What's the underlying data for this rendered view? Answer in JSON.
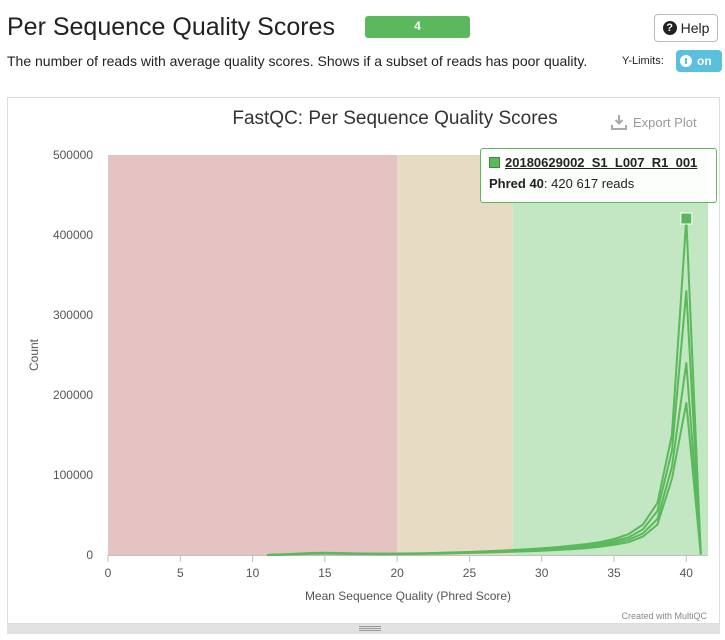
{
  "header": {
    "title": "Per Sequence Quality Scores",
    "badge": "4",
    "help_label": "Help",
    "description": "The number of reads with average quality scores. Shows if a subset of reads has poor quality.",
    "ylimits_label": "Y-Limits:",
    "toggle_label": "on"
  },
  "plot": {
    "export_label": "Export Plot",
    "credit": "Created with MultiQC"
  },
  "tooltip": {
    "sample": "20180629002_S1_L007_R1_001",
    "metric": "Phred 40",
    "value_text": ": 420 617 reads"
  },
  "colors": {
    "line": "#5cb85c",
    "band_fail": "#e6c3c3",
    "band_warn": "#e6dcc3",
    "band_pass": "#c3e6c3"
  },
  "chart_data": {
    "type": "line",
    "title": "FastQC: Per Sequence Quality Scores",
    "xlabel": "Mean Sequence Quality (Phred Score)",
    "ylabel": "Count",
    "xlim": [
      0,
      41.5
    ],
    "ylim": [
      0,
      500000
    ],
    "x_ticks": [
      0,
      5,
      10,
      15,
      20,
      25,
      30,
      35,
      40
    ],
    "y_ticks": [
      0,
      100000,
      200000,
      300000,
      400000,
      500000
    ],
    "y_tick_labels": [
      "0",
      "100000",
      "200000",
      "300000",
      "400000",
      "500000"
    ],
    "bands": [
      {
        "from": 0,
        "to": 20,
        "status": "fail"
      },
      {
        "from": 20,
        "to": 28,
        "status": "warn"
      },
      {
        "from": 28,
        "to": 41.5,
        "status": "pass"
      }
    ],
    "x": [
      11,
      12,
      13,
      14,
      15,
      16,
      17,
      18,
      19,
      20,
      21,
      22,
      23,
      24,
      25,
      26,
      27,
      28,
      29,
      30,
      31,
      32,
      33,
      34,
      35,
      36,
      37,
      38,
      39,
      40,
      41
    ],
    "series": [
      {
        "values": [
          0,
          800,
          1500,
          2500,
          2800,
          2500,
          2000,
          1800,
          1700,
          1800,
          2000,
          2300,
          2700,
          3200,
          3800,
          4500,
          5300,
          6200,
          7200,
          8400,
          9800,
          11500,
          13500,
          16000,
          20000,
          26000,
          38000,
          65000,
          150000,
          420617,
          1000
        ]
      },
      {
        "values": [
          0,
          600,
          1200,
          2000,
          2300,
          2100,
          1700,
          1500,
          1400,
          1500,
          1700,
          2000,
          2400,
          2900,
          3500,
          4100,
          4800,
          5600,
          6500,
          7500,
          8700,
          10000,
          11800,
          14000,
          17500,
          22000,
          32000,
          55000,
          130000,
          330000,
          800
        ]
      },
      {
        "values": [
          0,
          500,
          1000,
          1700,
          2000,
          1800,
          1500,
          1300,
          1200,
          1300,
          1500,
          1800,
          2100,
          2500,
          3000,
          3500,
          4100,
          4800,
          5500,
          6400,
          7400,
          8500,
          10000,
          12000,
          15000,
          19000,
          27000,
          45000,
          110000,
          240000,
          600
        ]
      },
      {
        "values": [
          0,
          400,
          900,
          1500,
          1800,
          1600,
          1300,
          1100,
          1000,
          1100,
          1300,
          1500,
          1800,
          2200,
          2600,
          3000,
          3500,
          4100,
          4700,
          5400,
          6200,
          7200,
          8500,
          10200,
          12800,
          16000,
          23000,
          38000,
          95000,
          190000,
          500
        ]
      }
    ],
    "highlight": {
      "x": 40,
      "y": 420617
    }
  }
}
